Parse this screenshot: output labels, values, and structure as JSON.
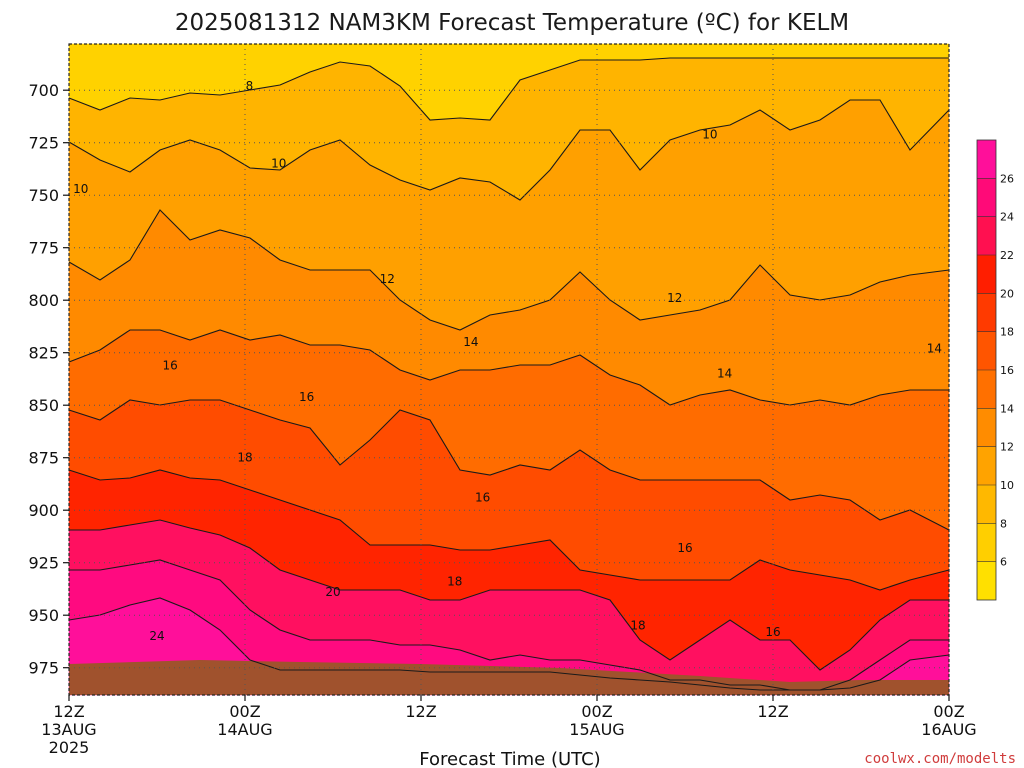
{
  "chart_data": {
    "type": "heatmap",
    "title": "2025081312 NAM3KM Forecast Temperature (ºC) for KELM",
    "xlabel": "Forecast Time (UTC)",
    "ylabel": "",
    "credit": "coolwx.com/modelts",
    "x_ticks": [
      {
        "hour": 0,
        "line1": "12Z",
        "line2": "13AUG",
        "line3": "2025"
      },
      {
        "hour": 12,
        "line1": "00Z",
        "line2": "14AUG",
        "line3": ""
      },
      {
        "hour": 24,
        "line1": "12Z",
        "line2": "",
        "line3": ""
      },
      {
        "hour": 36,
        "line1": "00Z",
        "line2": "15AUG",
        "line3": ""
      },
      {
        "hour": 48,
        "line1": "12Z",
        "line2": "",
        "line3": ""
      },
      {
        "hour": 60,
        "line1": "00Z",
        "line2": "16AUG",
        "line3": ""
      }
    ],
    "x_range_hours": [
      0,
      60
    ],
    "y_ticks_hpa": [
      700,
      725,
      750,
      775,
      800,
      825,
      850,
      875,
      900,
      925,
      950,
      975
    ],
    "y_range_hpa": [
      678,
      988
    ],
    "colorbar_levels": [
      4,
      6,
      8,
      10,
      12,
      14,
      16,
      18,
      20,
      22,
      24,
      26,
      28
    ],
    "colorbar_ticks": [
      6,
      8,
      10,
      12,
      14,
      16,
      18,
      20,
      22,
      24,
      26
    ],
    "colorbar_colors": [
      "#ffe000",
      "#ffcf00",
      "#ffb800",
      "#ffa300",
      "#ff8c00",
      "#ff7000",
      "#ff5500",
      "#ff3a00",
      "#ff1e00",
      "#ff1050",
      "#ff0a78",
      "#ff0f9a"
    ],
    "ground_color": "#a0522d",
    "contour_labels": [
      {
        "hour": 12.3,
        "hpa": 698,
        "text": "8"
      },
      {
        "hour": 0.8,
        "hpa": 747,
        "text": "10"
      },
      {
        "hour": 14.3,
        "hpa": 735,
        "text": "10"
      },
      {
        "hour": 43.7,
        "hpa": 721,
        "text": "10"
      },
      {
        "hour": 21.7,
        "hpa": 790,
        "text": "12"
      },
      {
        "hour": 41.3,
        "hpa": 799,
        "text": "12"
      },
      {
        "hour": 6.9,
        "hpa": 831,
        "text": "16"
      },
      {
        "hour": 16.2,
        "hpa": 846,
        "text": "16"
      },
      {
        "hour": 27.4,
        "hpa": 820,
        "text": "14"
      },
      {
        "hour": 44.7,
        "hpa": 835,
        "text": "14"
      },
      {
        "hour": 59.0,
        "hpa": 823,
        "text": "14"
      },
      {
        "hour": 12.0,
        "hpa": 875,
        "text": "18"
      },
      {
        "hour": 28.2,
        "hpa": 894,
        "text": "16"
      },
      {
        "hour": 18.0,
        "hpa": 939,
        "text": "20"
      },
      {
        "hour": 26.3,
        "hpa": 934,
        "text": "18"
      },
      {
        "hour": 42.0,
        "hpa": 918,
        "text": "16"
      },
      {
        "hour": 38.8,
        "hpa": 955,
        "text": "18"
      },
      {
        "hour": 6.0,
        "hpa": 960,
        "text": "24"
      },
      {
        "hour": 48.0,
        "hpa": 958,
        "text": "16"
      }
    ]
  }
}
